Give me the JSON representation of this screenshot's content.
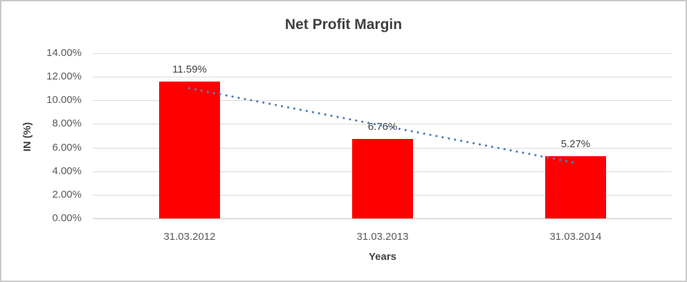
{
  "chart_data": {
    "type": "bar",
    "title": "Net Profit Margin",
    "xlabel": "Years",
    "ylabel": "IN (%)",
    "categories": [
      "31.03.2012",
      "31.03.2013",
      "31.03.2014"
    ],
    "values": [
      11.59,
      6.76,
      5.27
    ],
    "data_labels": [
      "11.59%",
      "6.76%",
      "5.27%"
    ],
    "y_tick_labels": [
      "0.00%",
      "2.00%",
      "4.00%",
      "6.00%",
      "8.00%",
      "10.00%",
      "12.00%",
      "14.00%"
    ],
    "y_tick_values": [
      0,
      2,
      4,
      6,
      8,
      10,
      12,
      14
    ],
    "ylim": [
      0,
      14
    ],
    "grid": true,
    "legend": false,
    "bar_color": "#ff0000",
    "trendline": {
      "type": "linear",
      "style": "dotted",
      "color": "#4f81bd",
      "start_value": 11.03,
      "end_value": 4.71
    },
    "colors": {
      "title_text": "#404040",
      "tick_text": "#595959",
      "gridline": "#d9d9d9",
      "baseline": "#c6c6c6",
      "frame_border": "#c9c9c9"
    }
  }
}
